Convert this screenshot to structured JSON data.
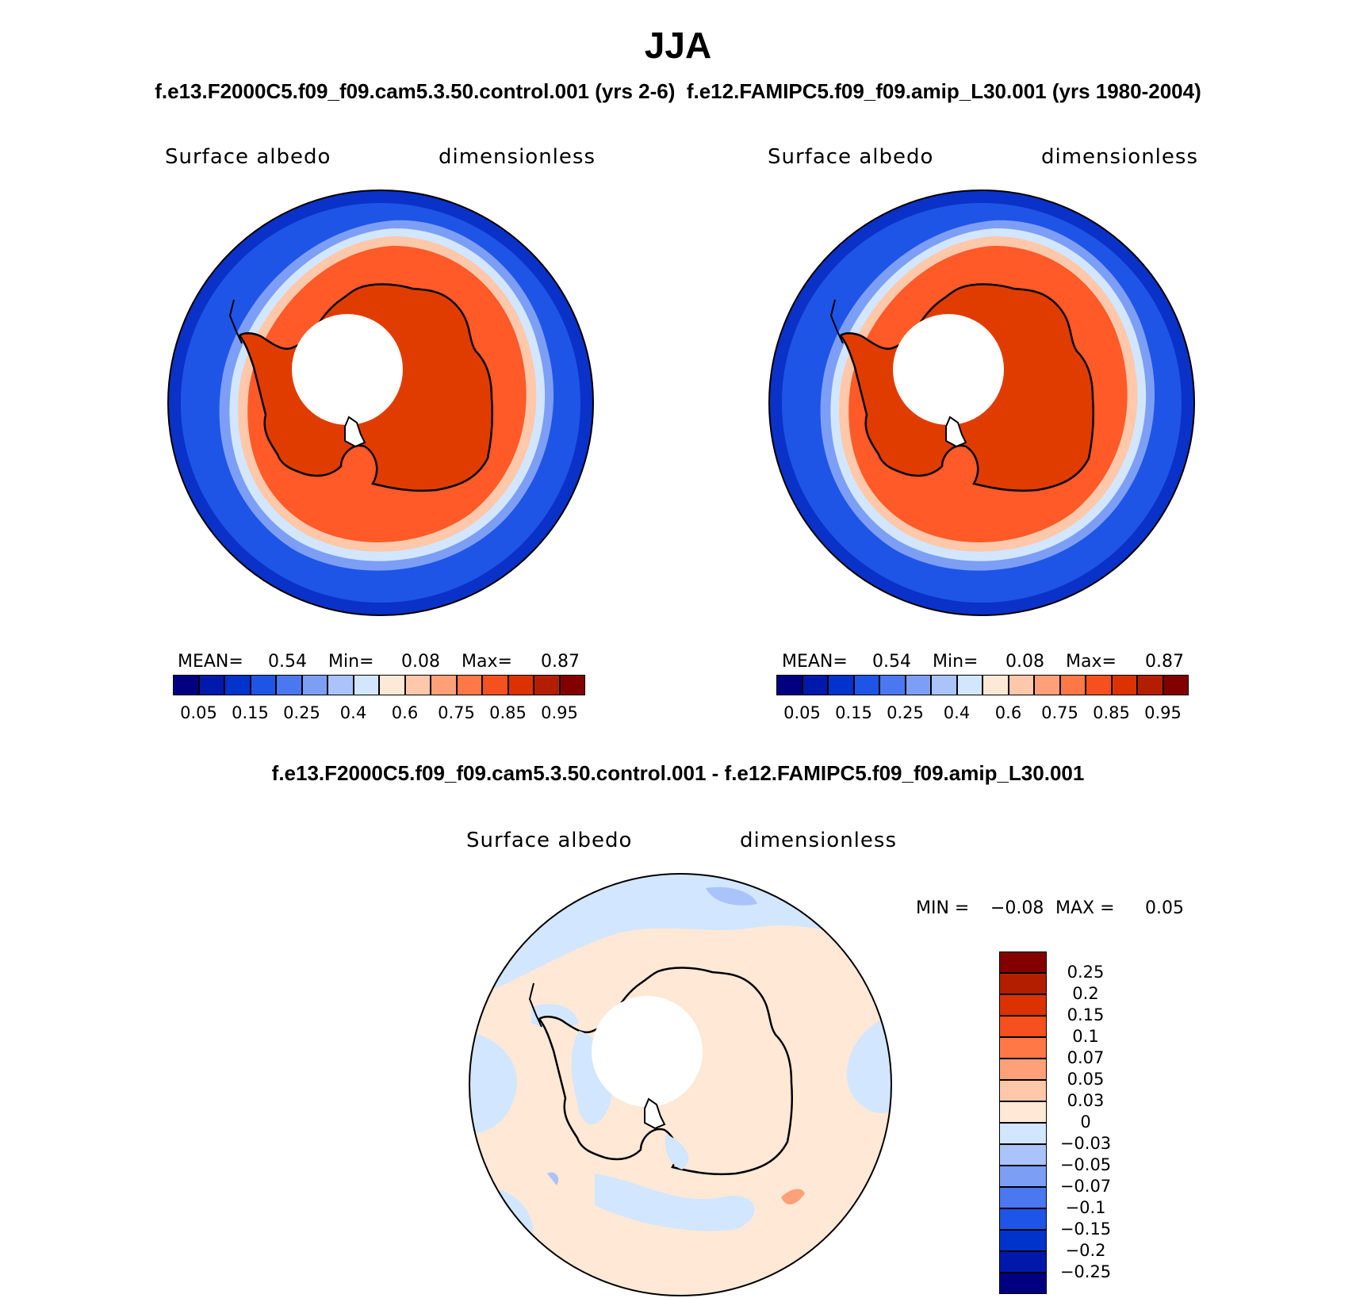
{
  "title": "JJA",
  "subtitle": "f.e13.F2000C5.f09_f09.cam5.3.50.control.001 (yrs 2-6)  f.e12.FAMIPC5.f09_f09.amip_L30.001 (yrs 1980-2004)",
  "diff_title": "f.e13.F2000C5.f09_f09.cam5.3.50.control.001 - f.e12.FAMIPC5.f09_f09.amip_L30.001",
  "colors": {
    "abs_scale": [
      "#000080",
      "#0019aa",
      "#0033cc",
      "#1e55e6",
      "#4b78f0",
      "#7d9ef5",
      "#aac3fa",
      "#d2e6ff",
      "#ffe8d6",
      "#ffc8aa",
      "#ffa078",
      "#ff7846",
      "#f5501e",
      "#dc3200",
      "#b41e00",
      "#820000"
    ],
    "diff_scale": [
      "#000080",
      "#0019aa",
      "#0033cc",
      "#1e55e6",
      "#4b78f0",
      "#7d9ef5",
      "#aac3fa",
      "#d2e6ff",
      "#ffe8d6",
      "#ffc8aa",
      "#ffa078",
      "#ff7846",
      "#f5501e",
      "#dc3200",
      "#b41e00",
      "#820000"
    ],
    "ocean_low": "#0a32c8",
    "sea_ice": "#ff5a28",
    "continent": "#e13c00"
  },
  "panels": [
    {
      "variable": "Surface albedo",
      "units": "dimensionless",
      "mean_label": "MEAN=",
      "mean": "0.54",
      "min_label": "Min=",
      "min": "0.08",
      "max_label": "Max=",
      "max": "0.87",
      "colorbar_ticks": [
        "0.05",
        "0.15",
        "0.25",
        "0.4",
        "0.6",
        "0.75",
        "0.85",
        "0.95"
      ]
    },
    {
      "variable": "Surface albedo",
      "units": "dimensionless",
      "mean_label": "MEAN=",
      "mean": "0.54",
      "min_label": "Min=",
      "min": "0.08",
      "max_label": "Max=",
      "max": "0.87",
      "colorbar_ticks": [
        "0.05",
        "0.15",
        "0.25",
        "0.4",
        "0.6",
        "0.75",
        "0.85",
        "0.95"
      ]
    }
  ],
  "diff_panel": {
    "variable": "Surface albedo",
    "units": "dimensionless",
    "min_label": "MIN =",
    "min": "−0.08",
    "max_label": "MAX =",
    "max": "0.05",
    "colorbar_ticks": [
      "0.25",
      "0.2",
      "0.15",
      "0.1",
      "0.07",
      "0.05",
      "0.03",
      "0",
      "−0.03",
      "−0.05",
      "−0.07",
      "−0.1",
      "−0.15",
      "−0.2",
      "−0.25"
    ]
  }
}
